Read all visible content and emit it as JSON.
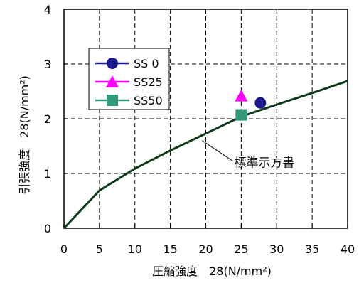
{
  "chart_data": {
    "type": "line",
    "xlabel": "圧縮強度　28(N/mm²)",
    "ylabel": "引張強度　28(N/mm²)",
    "xlim": [
      0,
      40
    ],
    "ylim": [
      0,
      4
    ],
    "x_ticks": [
      "0",
      "5",
      "10",
      "15",
      "20",
      "25",
      "30",
      "35",
      "40"
    ],
    "y_ticks": [
      "0",
      "1",
      "2",
      "3",
      "4"
    ],
    "grid": true,
    "legend_position": "top-left",
    "series": [
      {
        "name": "SS 0",
        "marker": "circle",
        "color": "#1a1a8c",
        "points": [
          [
            27.7,
            2.29
          ]
        ]
      },
      {
        "name": "SS25",
        "marker": "triangle",
        "color": "#ff00ff",
        "points": [
          [
            25.0,
            2.42
          ]
        ]
      },
      {
        "name": "SS50",
        "marker": "square",
        "color": "#33997a",
        "points": [
          [
            25.0,
            2.07
          ]
        ]
      },
      {
        "name": "標準示方書",
        "marker": "none",
        "color": "#0d3a1a",
        "points": [
          [
            0,
            0
          ],
          [
            5,
            0.69
          ],
          [
            10,
            1.09
          ],
          [
            15,
            1.42
          ],
          [
            20,
            1.73
          ],
          [
            25,
            2.04
          ],
          [
            30,
            2.26
          ],
          [
            35,
            2.47
          ],
          [
            40,
            2.69
          ]
        ]
      }
    ],
    "annotation": {
      "text": "標準示方書",
      "target": [
        19.5,
        1.6
      ],
      "label_at": [
        23.0,
        1.15
      ]
    }
  }
}
